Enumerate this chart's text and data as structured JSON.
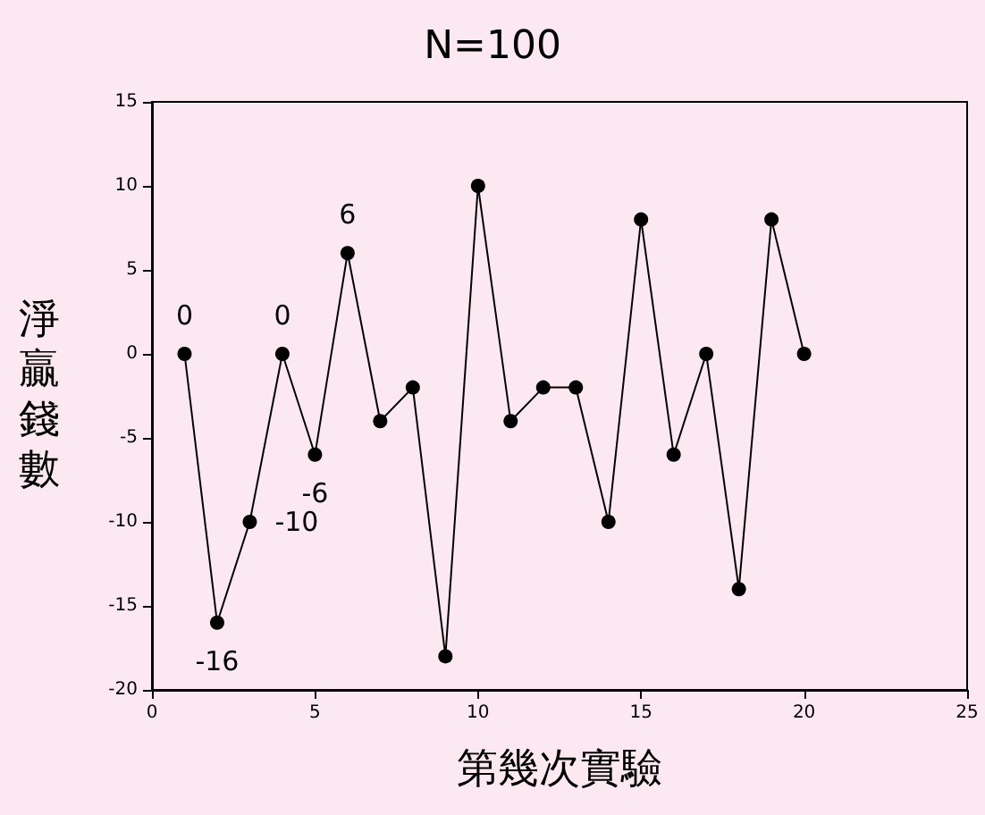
{
  "chart_data": {
    "type": "line",
    "title": "N=100",
    "xlabel": "第幾次實驗",
    "ylabel": "淨贏錢數",
    "x": [
      1,
      2,
      3,
      4,
      5,
      6,
      7,
      8,
      9,
      10,
      11,
      12,
      13,
      14,
      15,
      16,
      17,
      18,
      19,
      20
    ],
    "series": [
      {
        "color": "#000000",
        "values": [
          0,
          -16,
          -10,
          0,
          -6,
          6,
          -4,
          -2,
          -18,
          10,
          -4,
          -2,
          -2,
          -10,
          8,
          -6,
          0,
          -14,
          8,
          0
        ],
        "value_labels": [
          "0",
          "-16",
          "-10",
          "0",
          "-6",
          "6",
          null,
          null,
          null,
          null,
          null,
          null,
          null,
          null,
          null,
          null,
          null,
          null,
          null,
          null
        ]
      }
    ],
    "xlim": [
      0,
      25
    ],
    "xticks": [
      0,
      5,
      10,
      15,
      20,
      25
    ],
    "ylim": [
      -20,
      15
    ],
    "yticks": [
      -20,
      -15,
      -10,
      -5,
      0,
      5,
      10,
      15
    ],
    "grid": false,
    "marker": "circle",
    "line_style": "solid"
  }
}
